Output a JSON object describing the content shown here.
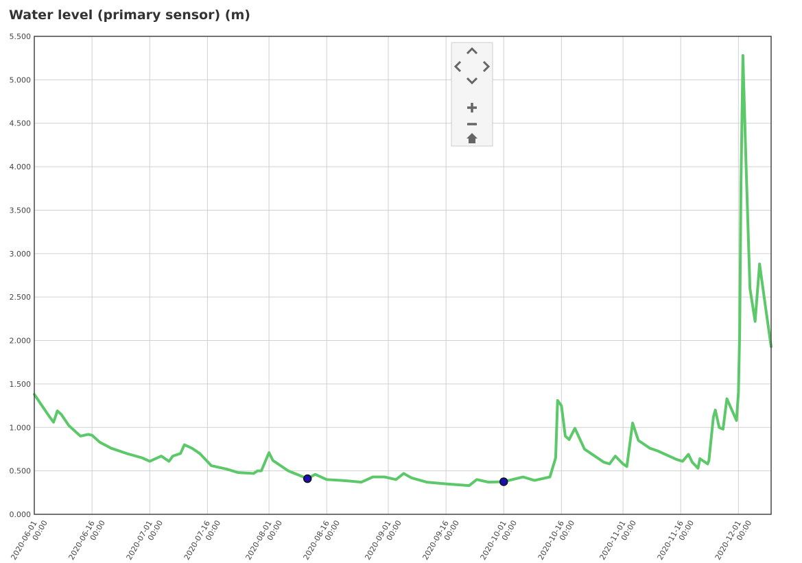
{
  "chart_data": {
    "type": "line",
    "title": "Water level (primary sensor) (m)",
    "x": [
      "2020-06-01 00:00",
      "2020-06-03 00:00",
      "2020-06-05 00:00",
      "2020-06-06 00:00",
      "2020-06-07 00:00",
      "2020-06-08 00:00",
      "2020-06-10 00:00",
      "2020-06-13 00:00",
      "2020-06-15 00:00",
      "2020-06-16 00:00",
      "2020-06-18 00:00",
      "2020-06-21 00:00",
      "2020-06-25 00:00",
      "2020-06-29 00:00",
      "2020-07-01 00:00",
      "2020-07-04 00:00",
      "2020-07-06 00:00",
      "2020-07-07 00:00",
      "2020-07-09 00:00",
      "2020-07-10 00:00",
      "2020-07-12 00:00",
      "2020-07-14 00:00",
      "2020-07-17 00:00",
      "2020-07-21 00:00",
      "2020-07-24 00:00",
      "2020-07-28 00:00",
      "2020-07-29 00:00",
      "2020-07-30 00:00",
      "2020-08-01 00:00",
      "2020-08-02 00:00",
      "2020-08-06 00:00",
      "2020-08-11 00:00",
      "2020-08-13 00:00",
      "2020-08-16 00:00",
      "2020-08-20 00:00",
      "2020-08-25 00:00",
      "2020-08-28 00:00",
      "2020-08-31 00:00",
      "2020-09-03 00:00",
      "2020-09-05 00:00",
      "2020-09-07 00:00",
      "2020-09-11 00:00",
      "2020-09-16 00:00",
      "2020-09-22 00:00",
      "2020-09-24 00:00",
      "2020-09-27 00:00",
      "2020-10-01 00:00",
      "2020-10-06 00:00",
      "2020-10-09 00:00",
      "2020-10-13 00:00",
      "2020-10-14 12:00",
      "2020-10-15 00:00",
      "2020-10-16 00:00",
      "2020-10-17 00:00",
      "2020-10-18 00:00",
      "2020-10-19 12:00",
      "2020-10-22 00:00",
      "2020-10-27 00:00",
      "2020-10-28 12:00",
      "2020-10-30 00:00",
      "2020-11-01 00:00",
      "2020-11-02 00:00",
      "2020-11-03 12:00",
      "2020-11-05 00:00",
      "2020-11-08 00:00",
      "2020-11-10 00:00",
      "2020-11-15 00:00",
      "2020-11-16 12:00",
      "2020-11-18 00:00",
      "2020-11-19 00:00",
      "2020-11-20 12:00",
      "2020-11-21 00:00",
      "2020-11-23 00:00",
      "2020-11-23 08:00",
      "2020-11-24 12:00",
      "2020-11-25 00:00",
      "2020-11-26 00:00",
      "2020-11-27 00:00",
      "2020-11-28 00:00",
      "2020-11-30 12:00",
      "2020-12-01 00:00",
      "2020-12-01 08:00",
      "2020-12-01 16:00",
      "2020-12-02 04:00",
      "2020-12-03 00:00",
      "2020-12-04 00:00",
      "2020-12-05 08:00",
      "2020-12-06 12:00",
      "2020-12-08 00:00",
      "2020-12-09 12:00"
    ],
    "series": [
      {
        "color": "#5cc86a",
        "values": [
          1.38,
          1.25,
          1.12,
          1.06,
          1.19,
          1.15,
          1.02,
          0.9,
          0.92,
          0.91,
          0.83,
          0.76,
          0.7,
          0.65,
          0.61,
          0.67,
          0.61,
          0.67,
          0.7,
          0.8,
          0.76,
          0.7,
          0.56,
          0.52,
          0.48,
          0.47,
          0.5,
          0.5,
          0.71,
          0.62,
          0.5,
          0.41,
          0.46,
          0.4,
          0.39,
          0.37,
          0.43,
          0.43,
          0.4,
          0.47,
          0.42,
          0.37,
          0.35,
          0.33,
          0.4,
          0.37,
          0.375,
          0.43,
          0.39,
          0.43,
          0.65,
          1.31,
          1.25,
          0.9,
          0.86,
          0.99,
          0.75,
          0.6,
          0.58,
          0.67,
          0.58,
          0.55,
          1.05,
          0.85,
          0.76,
          0.73,
          0.63,
          0.61,
          0.69,
          0.6,
          0.53,
          0.64,
          0.58,
          0.62,
          1.12,
          1.2,
          1.0,
          0.98,
          1.33,
          1.08,
          1.4,
          2.1,
          3.8,
          5.28,
          4.0,
          2.6,
          2.22,
          2.88,
          2.4,
          1.93
        ]
      }
    ],
    "highlights": {
      "color": "#1a0fb0",
      "x": [
        "2020-08-11 00:00",
        "2020-10-01 00:00"
      ],
      "values": [
        0.41,
        0.375
      ]
    },
    "xlim": [
      "2020-06-01 00:00",
      "2020-12-09 12:00"
    ],
    "xticks": [
      "2020-06-01 00:00",
      "2020-06-16 00:00",
      "2020-07-01 00:00",
      "2020-07-16 00:00",
      "2020-08-01 00:00",
      "2020-08-16 00:00",
      "2020-09-01 00:00",
      "2020-09-16 00:00",
      "2020-10-01 00:00",
      "2020-10-16 00:00",
      "2020-11-01 00:00",
      "2020-11-16 00:00",
      "2020-12-01 00:00"
    ],
    "ylim": [
      0,
      5.5
    ],
    "yticks": [
      {
        "value": 0,
        "label": "0.000"
      },
      {
        "value": 0.5,
        "label": "0.500"
      },
      {
        "value": 1,
        "label": "1.000"
      },
      {
        "value": 1.5,
        "label": "1.500"
      },
      {
        "value": 2,
        "label": "2.000"
      },
      {
        "value": 2.5,
        "label": "2.500"
      },
      {
        "value": 3,
        "label": "3.000"
      },
      {
        "value": 3.5,
        "label": "3.500"
      },
      {
        "value": 4,
        "label": "4.000"
      },
      {
        "value": 4.5,
        "label": "4.500"
      },
      {
        "value": 5,
        "label": "5.000"
      },
      {
        "value": 5.5,
        "label": "5.500"
      }
    ],
    "grid": true
  }
}
